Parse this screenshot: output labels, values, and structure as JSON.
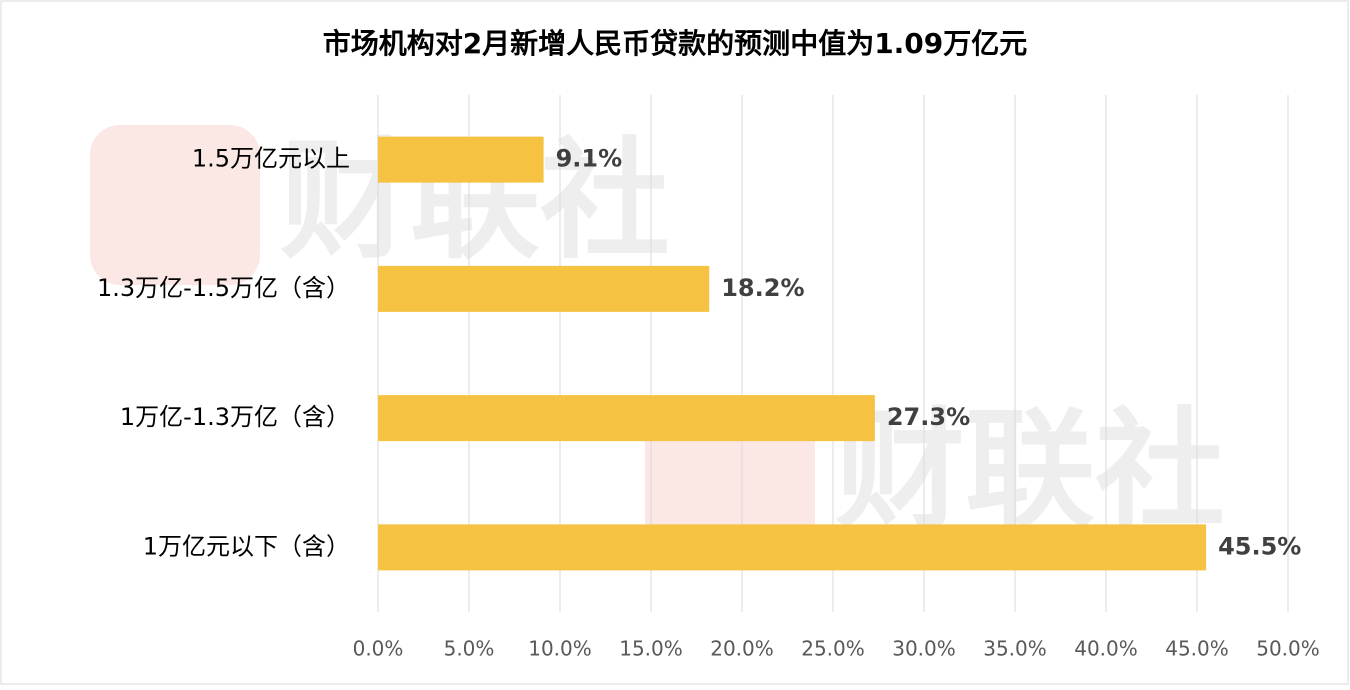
{
  "chart_data": {
    "type": "hbar",
    "title": "市场机构对2月新增人民币贷款的预测中值为1.09万亿元",
    "watermark": "财联社",
    "categories": [
      "1.5万亿元以上",
      "1.3万亿-1.5万亿（含）",
      "1万亿-1.3万亿（含）",
      "1万亿元以下（含）"
    ],
    "values": [
      9.1,
      18.2,
      27.3,
      45.5
    ],
    "value_labels": [
      "9.1%",
      "18.2%",
      "27.3%",
      "45.5%"
    ],
    "color": "#f5c242",
    "xlim": [
      0,
      50
    ],
    "xticks": [
      {
        "value": 0,
        "label": "0.0%"
      },
      {
        "value": 5,
        "label": "5.0%"
      },
      {
        "value": 10,
        "label": "10.0%"
      },
      {
        "value": 15,
        "label": "15.0%"
      },
      {
        "value": 20,
        "label": "20.0%"
      },
      {
        "value": 25,
        "label": "25.0%"
      },
      {
        "value": 30,
        "label": "30.0%"
      },
      {
        "value": 35,
        "label": "35.0%"
      },
      {
        "value": 40,
        "label": "40.0%"
      },
      {
        "value": 45,
        "label": "45.0%"
      },
      {
        "value": 50,
        "label": "50.0%"
      }
    ],
    "grid": true
  }
}
